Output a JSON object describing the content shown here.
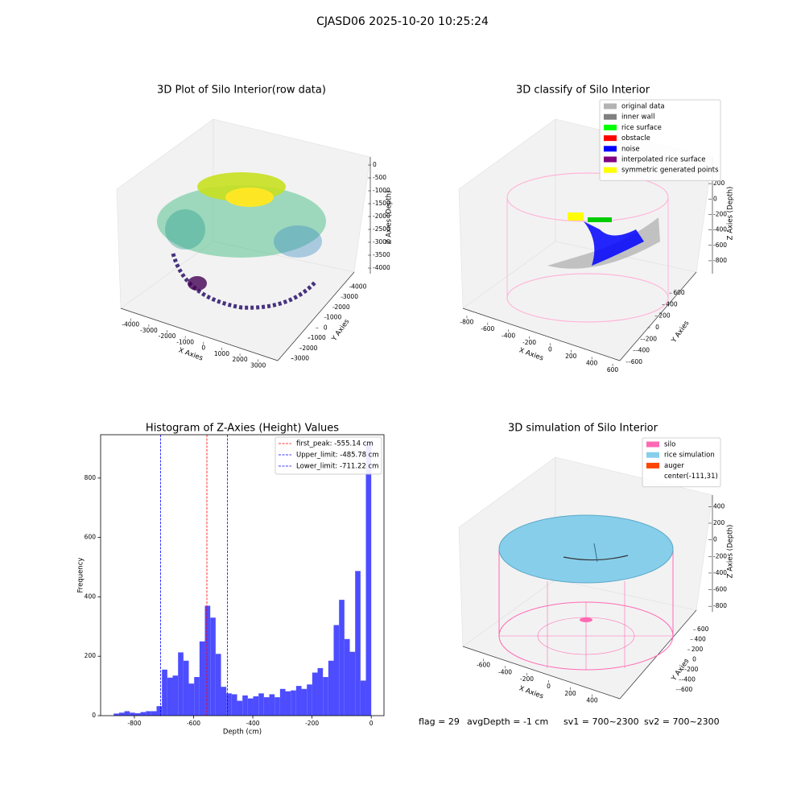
{
  "suptitle": "CJASD06 2025-10-20 10:25:24",
  "footer": [
    "flag = 29",
    "avgDepth = -1 cm",
    "sv1 = 700~2300",
    "sv2 = 700~2300"
  ],
  "chart_data": [
    {
      "type": "scatter3d",
      "title": "3D Plot of Silo Interior(row data)",
      "xlabel": "X Axies",
      "ylabel": "Y Axies",
      "zlabel": "Z Axies (Depth)",
      "xlim": [
        -4500,
        3500
      ],
      "xticks": [
        -4000,
        -3000,
        -2000,
        -1000,
        0,
        1000,
        2000,
        3000
      ],
      "ylim": [
        -3500,
        4500
      ],
      "yticks": [
        -3000,
        -2000,
        -1000,
        0,
        1000,
        2000,
        3000,
        4000
      ],
      "zlim": [
        -4200,
        200
      ],
      "zticks": [
        0,
        -500,
        -1000,
        -1500,
        -2000,
        -2500,
        -3000,
        -3500,
        -4000
      ]
    },
    {
      "type": "scatter3d",
      "title": "3D classify of Silo Interior",
      "xlabel": "X Axies",
      "ylabel": "Y Axies",
      "zlabel": "Z Axies (Depth)",
      "xlim": [
        -900,
        700
      ],
      "xticks": [
        -800,
        -600,
        -400,
        -200,
        0,
        200,
        400,
        600
      ],
      "ylim": [
        -700,
        700
      ],
      "yticks": [
        -600,
        -400,
        -200,
        0,
        200,
        400,
        600
      ],
      "zlim": [
        -900,
        300
      ],
      "zticks": [
        200,
        0,
        -200,
        -400,
        -600,
        -800
      ],
      "legend": [
        {
          "name": "original data",
          "color": "#b3b3b3"
        },
        {
          "name": "inner wall",
          "color": "#808080"
        },
        {
          "name": "rice surface",
          "color": "#00ff00"
        },
        {
          "name": "obstacle",
          "color": "#ff0000"
        },
        {
          "name": "noise",
          "color": "#0000ff"
        },
        {
          "name": "interpolated rice surface",
          "color": "#800080"
        },
        {
          "name": "symmetric generated points",
          "color": "#ffff00"
        }
      ]
    },
    {
      "type": "histogram",
      "title": "Histogram of Z-Axies (Height) Values",
      "xlabel": "Depth (cm)",
      "ylabel": "Frequency",
      "color": "#4d4dff",
      "bins": [
        -870,
        -851.875,
        -833.75,
        -815.625,
        -797.5,
        -779.375,
        -761.25,
        -743.125,
        -725,
        -706.875,
        -688.75,
        -670.625,
        -652.5,
        -634.375,
        -616.25,
        -598.125,
        -580,
        -561.875,
        -543.75,
        -525.625,
        -507.5,
        -489.375,
        -471.25,
        -453.125,
        -435,
        -416.875,
        -398.75,
        -380.625,
        -362.5,
        -344.375,
        -326.25,
        -308.125,
        -290,
        -271.875,
        -253.75,
        -235.625,
        -217.5,
        -199.375,
        -181.25,
        -163.125,
        -145,
        -126.875,
        -108.75,
        -90.625,
        -72.5,
        -54.375,
        -36.25,
        -18.125,
        0
      ],
      "values": [
        7,
        10,
        15,
        10,
        8,
        12,
        15,
        15,
        32,
        155,
        128,
        135,
        213,
        185,
        108,
        130,
        250,
        370,
        330,
        208,
        97,
        75,
        72,
        50,
        68,
        58,
        65,
        75,
        62,
        72,
        62,
        90,
        82,
        85,
        100,
        90,
        105,
        145,
        160,
        130,
        185,
        305,
        390,
        258,
        215,
        487,
        118,
        920
      ],
      "xlim": [
        -914,
        43
      ],
      "xticks": [
        -800,
        -600,
        -400,
        -200,
        0
      ],
      "ylim": [
        0,
        946
      ],
      "yticks": [
        0,
        200,
        400,
        600,
        800
      ],
      "lines": [
        {
          "name": "first_peak: -555.14 cm",
          "value": -555.14,
          "color": "#ff0000"
        },
        {
          "name": "Upper_limit: -485.78 cm",
          "value": -485.78,
          "color": "#0000ff"
        },
        {
          "name": "Lower_limit: -711.22 cm",
          "value": -711.22,
          "color": "#0000ff"
        }
      ]
    },
    {
      "type": "surface3d",
      "title": "3D simulation of Silo Interior",
      "xlabel": "X Axies",
      "ylabel": "Y Axies",
      "zlabel": "Z Axies (Depth)",
      "xlim": [
        -700,
        500
      ],
      "xticks": [
        -600,
        -400,
        -200,
        0,
        200,
        400
      ],
      "ylim": [
        -700,
        700
      ],
      "yticks": [
        -600,
        -400,
        -200,
        0,
        200,
        400,
        600
      ],
      "zlim": [
        -900,
        500
      ],
      "zticks": [
        400,
        200,
        0,
        -200,
        -400,
        -600,
        -800
      ],
      "legend": [
        {
          "name": "silo",
          "color": "#ff69b4"
        },
        {
          "name": "rice simulation",
          "color": "#87ceeb"
        },
        {
          "name": "auger",
          "color": "#ff4500"
        },
        {
          "name": "center(-111,31)"
        }
      ]
    }
  ]
}
